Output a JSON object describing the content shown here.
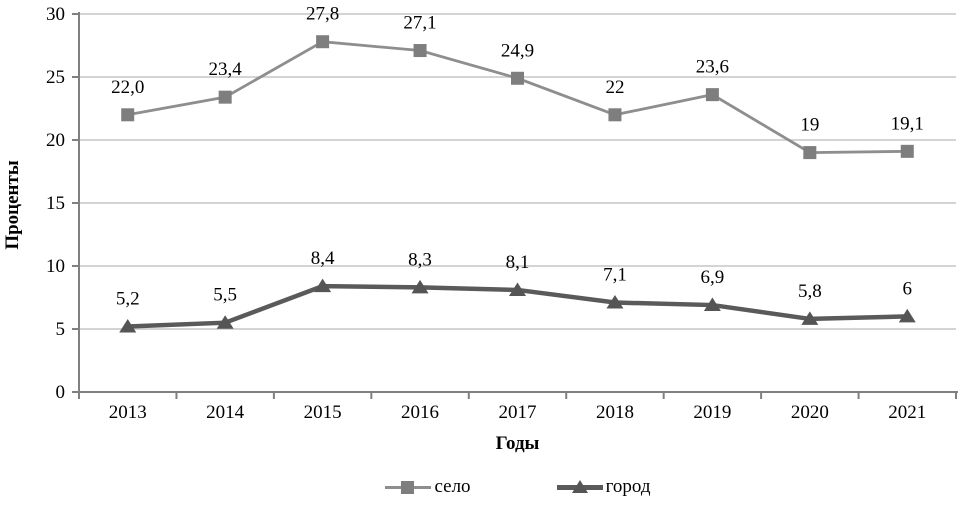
{
  "chart_data": {
    "type": "line",
    "title": "",
    "xlabel": "Годы",
    "ylabel": "Проценты",
    "categories": [
      "2013",
      "2014",
      "2015",
      "2016",
      "2017",
      "2018",
      "2019",
      "2020",
      "2021"
    ],
    "series": [
      {
        "id": "selo",
        "name": "село",
        "marker": "square",
        "color": "#8e8e8e",
        "marker_color": "#7e7e7e",
        "line_width": 2.8,
        "values": [
          22.0,
          23.4,
          27.8,
          27.1,
          24.9,
          22,
          23.6,
          19,
          19.1
        ],
        "labels": [
          "22,0",
          "23,4",
          "27,8",
          "27,1",
          "24,9",
          "22",
          "23,6",
          "19",
          "19,1"
        ]
      },
      {
        "id": "gorod",
        "name": "город",
        "marker": "triangle",
        "color": "#5a5a5a",
        "marker_color": "#555555",
        "line_width": 4.5,
        "values": [
          5.2,
          5.5,
          8.4,
          8.3,
          8.1,
          7.1,
          6.9,
          5.8,
          6
        ],
        "labels": [
          "5,2",
          "5,5",
          "8,4",
          "8,3",
          "8,1",
          "7,1",
          "6,9",
          "5,8",
          "6"
        ]
      }
    ],
    "ylim": [
      0,
      30
    ],
    "y_tick_step": 5,
    "y_tick_labels": [
      "0",
      "5",
      "10",
      "15",
      "20",
      "25",
      "30"
    ],
    "grid": true,
    "legend_position": "bottom",
    "colors": {
      "grid": "#c6c6c6",
      "axis": "#808080",
      "text": "#000000",
      "background": "#ffffff"
    }
  }
}
